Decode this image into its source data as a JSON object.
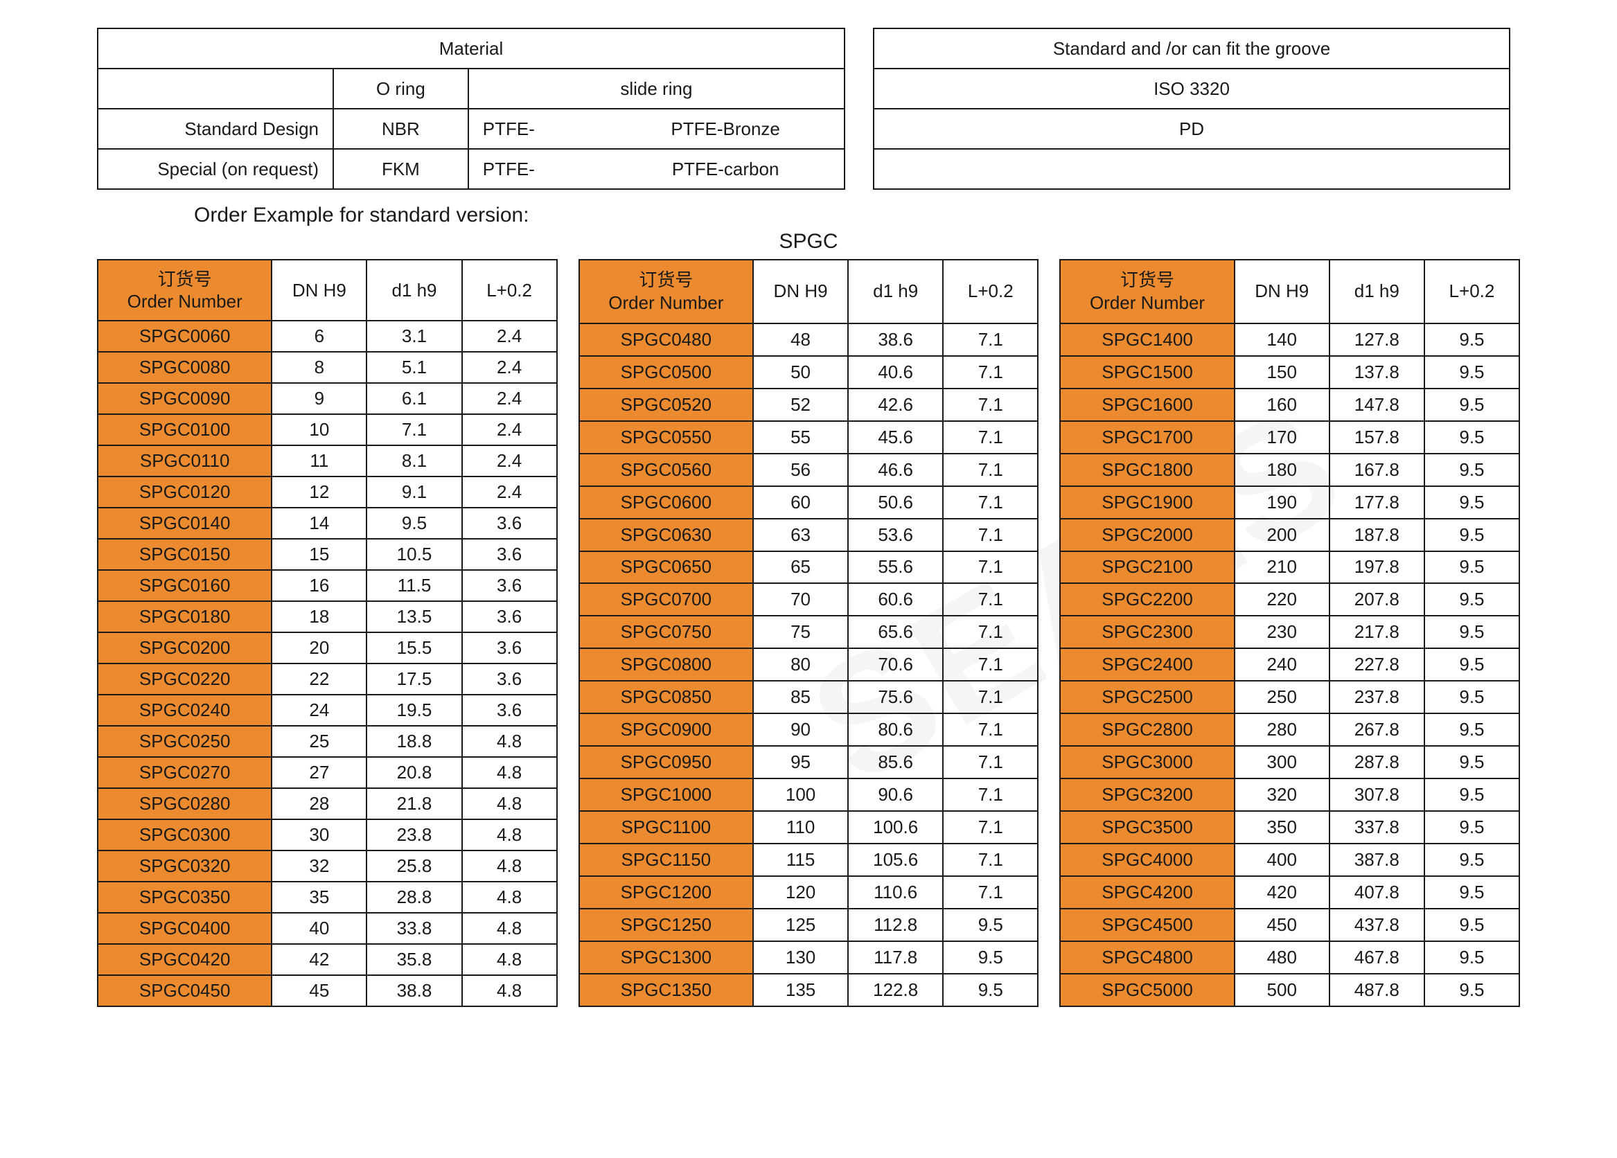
{
  "colors": {
    "accent": "#ec8a2f",
    "border": "#1a1a1a",
    "bg": "#ffffff"
  },
  "material": {
    "header": "Material",
    "cols": {
      "oring": "O ring",
      "slidering": "slide ring"
    },
    "rows": [
      {
        "label": "Standard Design",
        "oring": "NBR",
        "slide1": "PTFE-",
        "slide2": "PTFE-Bronze"
      },
      {
        "label": "Special (on request)",
        "oring": "FKM",
        "slide1": "PTFE-",
        "slide2": "PTFE-carbon"
      }
    ]
  },
  "standard": {
    "header": "Standard and /or can fit the groove",
    "rows": [
      "ISO 3320",
      "PD",
      ""
    ]
  },
  "orderExample": "Order Example for standard version:",
  "title": "SPGC",
  "dataHeader": {
    "order_zh": "订货号",
    "order_en": "Order Number",
    "dn": "DN H9",
    "d1": "d1 h9",
    "l": "L+0.2"
  },
  "t1": [
    [
      "SPGC0060",
      "6",
      "3.1",
      "2.4"
    ],
    [
      "SPGC0080",
      "8",
      "5.1",
      "2.4"
    ],
    [
      "SPGC0090",
      "9",
      "6.1",
      "2.4"
    ],
    [
      "SPGC0100",
      "10",
      "7.1",
      "2.4"
    ],
    [
      "SPGC0110",
      "11",
      "8.1",
      "2.4"
    ],
    [
      "SPGC0120",
      "12",
      "9.1",
      "2.4"
    ],
    [
      "SPGC0140",
      "14",
      "9.5",
      "3.6"
    ],
    [
      "SPGC0150",
      "15",
      "10.5",
      "3.6"
    ],
    [
      "SPGC0160",
      "16",
      "11.5",
      "3.6"
    ],
    [
      "SPGC0180",
      "18",
      "13.5",
      "3.6"
    ],
    [
      "SPGC0200",
      "20",
      "15.5",
      "3.6"
    ],
    [
      "SPGC0220",
      "22",
      "17.5",
      "3.6"
    ],
    [
      "SPGC0240",
      "24",
      "19.5",
      "3.6"
    ],
    [
      "SPGC0250",
      "25",
      "18.8",
      "4.8"
    ],
    [
      "SPGC0270",
      "27",
      "20.8",
      "4.8"
    ],
    [
      "SPGC0280",
      "28",
      "21.8",
      "4.8"
    ],
    [
      "SPGC0300",
      "30",
      "23.8",
      "4.8"
    ],
    [
      "SPGC0320",
      "32",
      "25.8",
      "4.8"
    ],
    [
      "SPGC0350",
      "35",
      "28.8",
      "4.8"
    ],
    [
      "SPGC0400",
      "40",
      "33.8",
      "4.8"
    ],
    [
      "SPGC0420",
      "42",
      "35.8",
      "4.8"
    ],
    [
      "SPGC0450",
      "45",
      "38.8",
      "4.8"
    ]
  ],
  "t2": [
    [
      "SPGC0480",
      "48",
      "38.6",
      "7.1"
    ],
    [
      "SPGC0500",
      "50",
      "40.6",
      "7.1"
    ],
    [
      "SPGC0520",
      "52",
      "42.6",
      "7.1"
    ],
    [
      "SPGC0550",
      "55",
      "45.6",
      "7.1"
    ],
    [
      "SPGC0560",
      "56",
      "46.6",
      "7.1"
    ],
    [
      "SPGC0600",
      "60",
      "50.6",
      "7.1"
    ],
    [
      "SPGC0630",
      "63",
      "53.6",
      "7.1"
    ],
    [
      "SPGC0650",
      "65",
      "55.6",
      "7.1"
    ],
    [
      "SPGC0700",
      "70",
      "60.6",
      "7.1"
    ],
    [
      "SPGC0750",
      "75",
      "65.6",
      "7.1"
    ],
    [
      "SPGC0800",
      "80",
      "70.6",
      "7.1"
    ],
    [
      "SPGC0850",
      "85",
      "75.6",
      "7.1"
    ],
    [
      "SPGC0900",
      "90",
      "80.6",
      "7.1"
    ],
    [
      "SPGC0950",
      "95",
      "85.6",
      "7.1"
    ],
    [
      "SPGC1000",
      "100",
      "90.6",
      "7.1"
    ],
    [
      "SPGC1100",
      "110",
      "100.6",
      "7.1"
    ],
    [
      "SPGC1150",
      "115",
      "105.6",
      "7.1"
    ],
    [
      "SPGC1200",
      "120",
      "110.6",
      "7.1"
    ],
    [
      "SPGC1250",
      "125",
      "112.8",
      "9.5"
    ],
    [
      "SPGC1300",
      "130",
      "117.8",
      "9.5"
    ],
    [
      "SPGC1350",
      "135",
      "122.8",
      "9.5"
    ]
  ],
  "t3": [
    [
      "SPGC1400",
      "140",
      "127.8",
      "9.5"
    ],
    [
      "SPGC1500",
      "150",
      "137.8",
      "9.5"
    ],
    [
      "SPGC1600",
      "160",
      "147.8",
      "9.5"
    ],
    [
      "SPGC1700",
      "170",
      "157.8",
      "9.5"
    ],
    [
      "SPGC1800",
      "180",
      "167.8",
      "9.5"
    ],
    [
      "SPGC1900",
      "190",
      "177.8",
      "9.5"
    ],
    [
      "SPGC2000",
      "200",
      "187.8",
      "9.5"
    ],
    [
      "SPGC2100",
      "210",
      "197.8",
      "9.5"
    ],
    [
      "SPGC2200",
      "220",
      "207.8",
      "9.5"
    ],
    [
      "SPGC2300",
      "230",
      "217.8",
      "9.5"
    ],
    [
      "SPGC2400",
      "240",
      "227.8",
      "9.5"
    ],
    [
      "SPGC2500",
      "250",
      "237.8",
      "9.5"
    ],
    [
      "SPGC2800",
      "280",
      "267.8",
      "9.5"
    ],
    [
      "SPGC3000",
      "300",
      "287.8",
      "9.5"
    ],
    [
      "SPGC3200",
      "320",
      "307.8",
      "9.5"
    ],
    [
      "SPGC3500",
      "350",
      "337.8",
      "9.5"
    ],
    [
      "SPGC4000",
      "400",
      "387.8",
      "9.5"
    ],
    [
      "SPGC4200",
      "420",
      "407.8",
      "9.5"
    ],
    [
      "SPGC4500",
      "450",
      "437.8",
      "9.5"
    ],
    [
      "SPGC4800",
      "480",
      "467.8",
      "9.5"
    ],
    [
      "SPGC5000",
      "500",
      "487.8",
      "9.5"
    ]
  ]
}
